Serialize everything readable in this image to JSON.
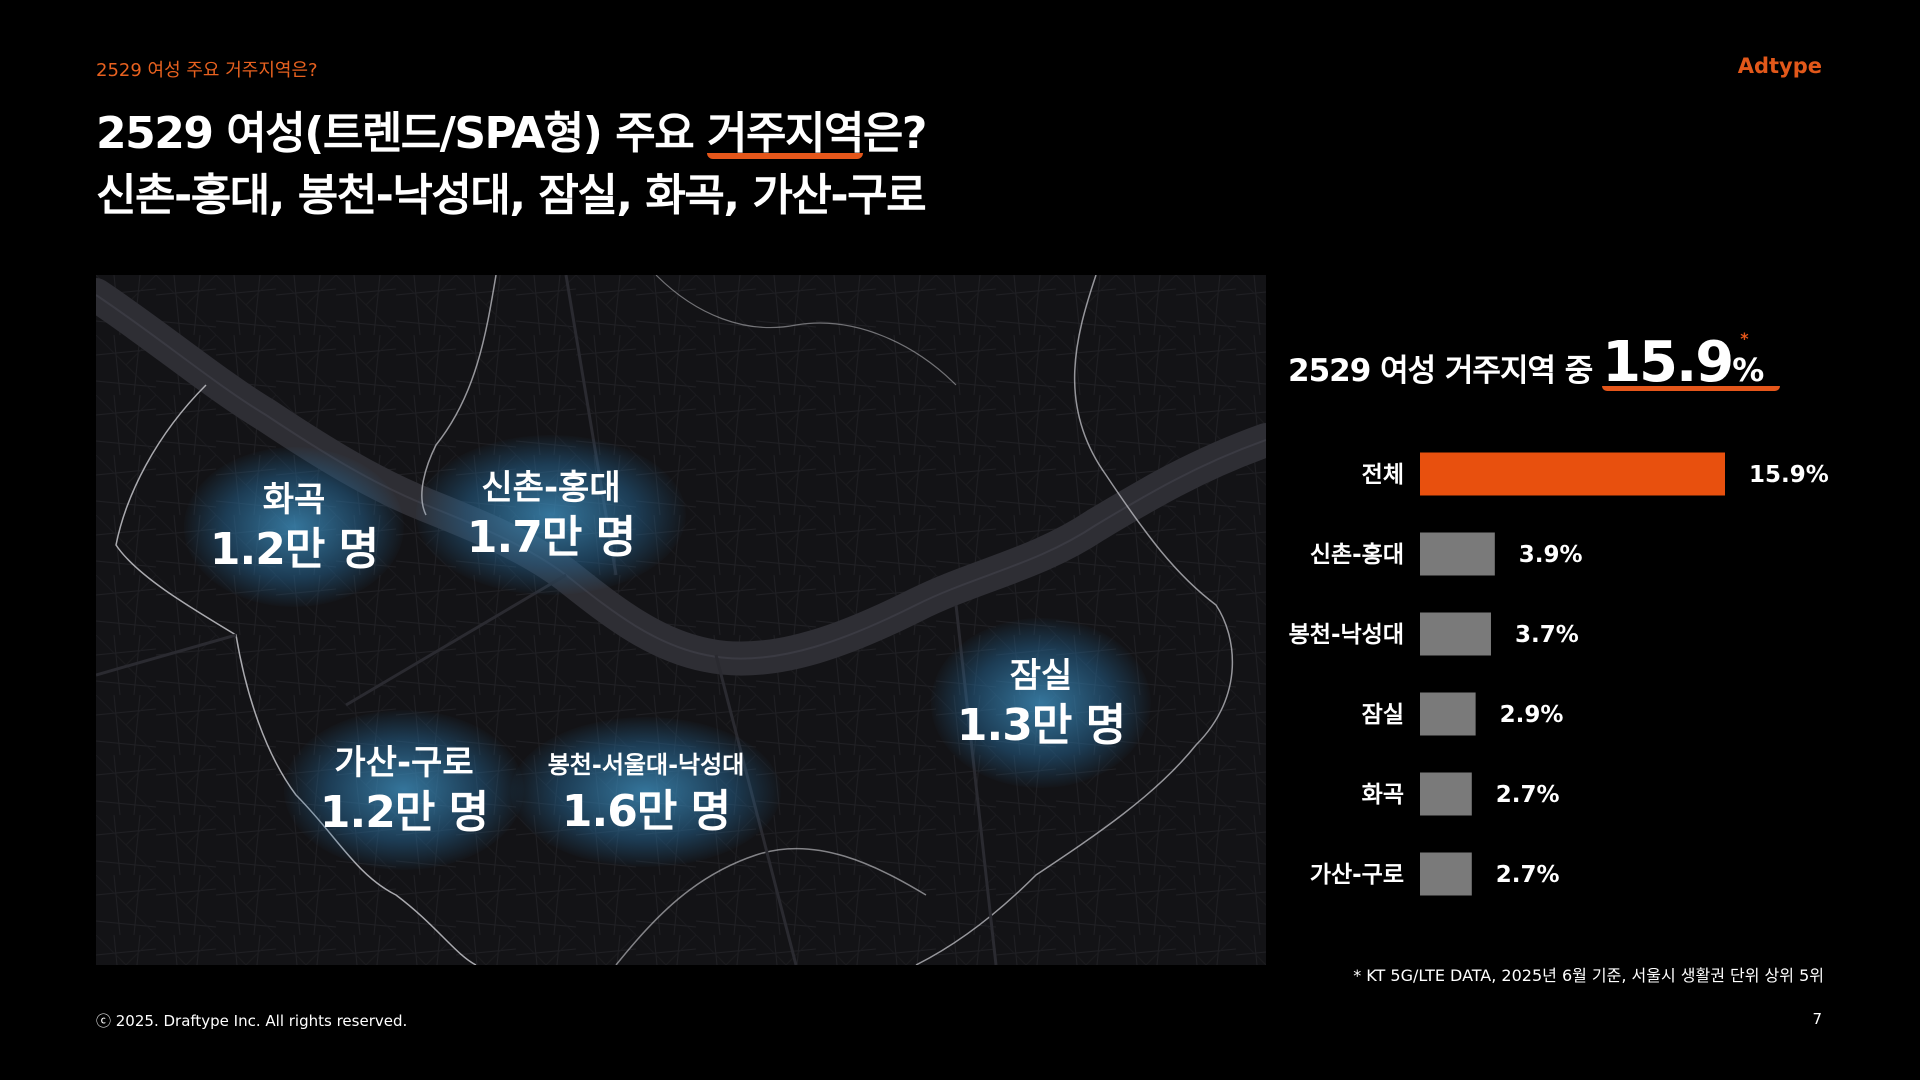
{
  "header": {
    "kicker": "2529 여성 주요 거주지역은?",
    "brand": "Adtype"
  },
  "title": {
    "line1_pre": "2529 여성(트렌드/SPA형) 주요 ",
    "line1_highlight": "거주지역",
    "line1_post": "은?",
    "line2": "신촌-홍대, 봉천-낙성대, 잠실, 화곡, 가산-구로"
  },
  "map": {
    "labels": [
      {
        "name": "화곡",
        "count": "1.2만 명"
      },
      {
        "name": "신촌-홍대",
        "count": "1.7만 명"
      },
      {
        "name": "잠실",
        "count": "1.3만 명"
      },
      {
        "name": "가산-구로",
        "count": "1.2만 명"
      },
      {
        "name": "봉천-서울대-낙성대",
        "count": "1.6만 명"
      }
    ]
  },
  "stat": {
    "prefix": "2529 여성 거주지역 중",
    "number": "15.9",
    "unit": "%",
    "asterisk": "*"
  },
  "chart_data": {
    "type": "bar",
    "orientation": "horizontal",
    "categories": [
      "전체",
      "신촌-홍대",
      "봉천-낙성대",
      "잠실",
      "화곡",
      "가산-구로"
    ],
    "values": [
      15.9,
      3.9,
      3.7,
      2.9,
      2.7,
      2.7
    ],
    "value_labels": [
      "15.9%",
      "3.9%",
      "3.7%",
      "2.9%",
      "2.7%",
      "2.7%"
    ],
    "unit": "%",
    "colors": [
      "#e8500e",
      "#7a7a7a",
      "#7a7a7a",
      "#7a7a7a",
      "#7a7a7a",
      "#7a7a7a"
    ],
    "grid": false,
    "legend": "none"
  },
  "footer": {
    "source": "* KT 5G/LTE DATA, 2025년 6월 기준, 서울시 생활권 단위 상위 5위",
    "copyright": "ⓒ 2025. Draftype Inc. All rights reserved.",
    "page_number": "7"
  },
  "colors": {
    "accent": "#e5561a",
    "background": "#000000",
    "bar_gray": "#7a7a7a",
    "glow": "#3f93c4"
  }
}
